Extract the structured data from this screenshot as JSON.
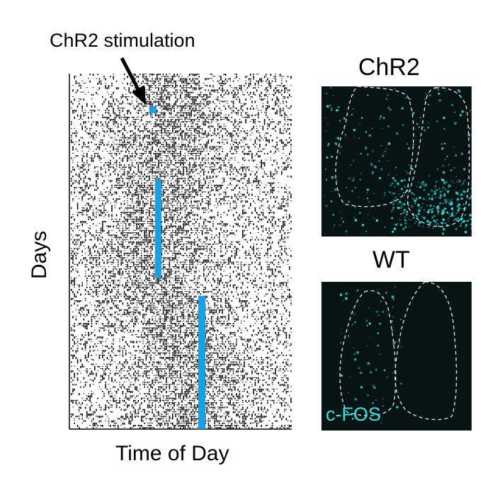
{
  "annotation": "ChR2 stimulation",
  "y_axis_label": "Days",
  "x_axis_label": "Time of Day",
  "panels": [
    {
      "title": "ChR2",
      "stain_label": ""
    },
    {
      "title": "WT",
      "stain_label": "c-FOS"
    }
  ],
  "colors": {
    "stimulation": "#1aa0e0",
    "cfos": "#2fe4e4",
    "micrograph_bg": "#081414",
    "actogram_ink": "#000000"
  }
}
